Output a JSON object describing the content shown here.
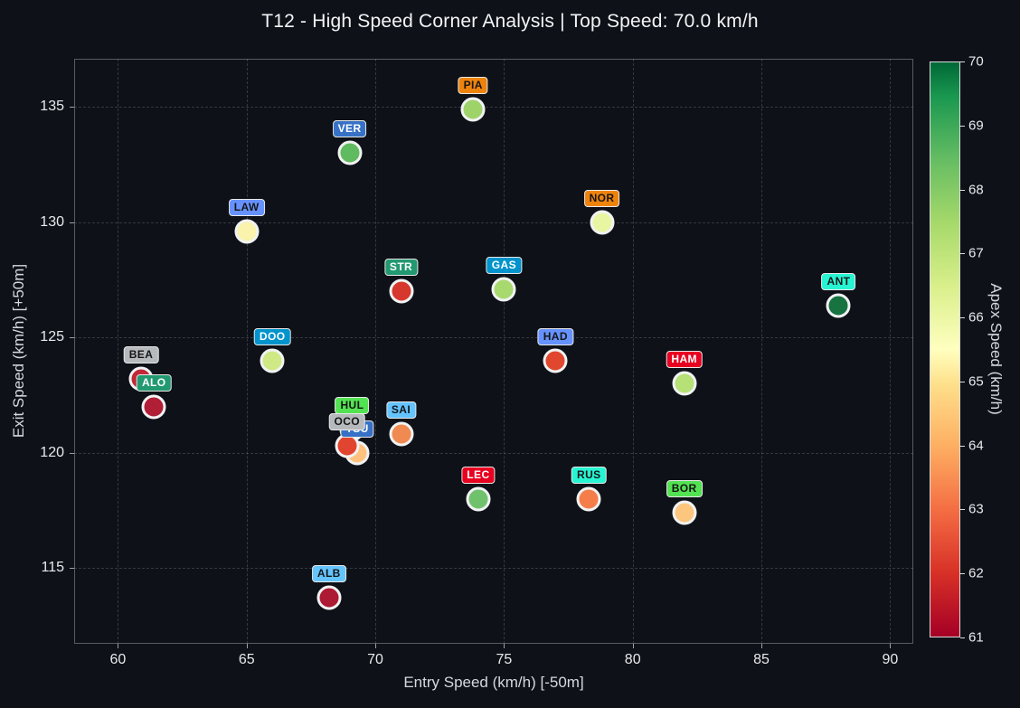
{
  "title": "T12 - High Speed Corner Analysis | Top Speed: 70.0 km/h",
  "colors": {
    "background": "#0e1117",
    "text": "#e8eaed",
    "axis_spine": "#565c66",
    "grid": "#96a0af",
    "point_edge": "#f1f2f3"
  },
  "chart_data": {
    "type": "scatter",
    "title": "T12 - High Speed Corner Analysis | Top Speed: 70.0 km/h",
    "xlabel": "Entry Speed (km/h) [-50m]",
    "ylabel": "Exit Speed (km/h) [+50m]",
    "xlim": [
      58.3,
      90.9
    ],
    "ylim": [
      111.7,
      137.1
    ],
    "xticks": [
      60,
      65,
      70,
      75,
      80,
      85,
      90
    ],
    "yticks": [
      115,
      120,
      125,
      130,
      135
    ],
    "grid": true,
    "colorbar": {
      "label": "Apex Speed (km/h)",
      "min": 61,
      "max": 70,
      "ticks": [
        61,
        62,
        63,
        64,
        65,
        66,
        67,
        68,
        69,
        70
      ],
      "colormap": "RdYlGn",
      "gradient_stops": [
        "#a50026 0%",
        "#d73027 11%",
        "#f46d43 22%",
        "#fdae61 33%",
        "#fee08b 44%",
        "#ffffbf 50%",
        "#d9ef8b 61%",
        "#a6d96a 72%",
        "#66bd63 83%",
        "#1a9850 94%",
        "#006837 100%"
      ]
    },
    "points": [
      {
        "code": "PIA",
        "entry": 73.8,
        "exit": 134.9,
        "apex_est": 67.5,
        "dot_color": "#9ed36a",
        "label_bg": "#ee830c",
        "label_fg": "#151515"
      },
      {
        "code": "VER",
        "entry": 69.0,
        "exit": 133.0,
        "apex_est": 68.3,
        "dot_color": "#60ba5f",
        "label_bg": "#3671c6",
        "label_fg": "#ffffff"
      },
      {
        "code": "NOR",
        "entry": 78.8,
        "exit": 130.0,
        "apex_est": 66.1,
        "dot_color": "#e9f6a1",
        "label_bg": "#ee830c",
        "label_fg": "#151515"
      },
      {
        "code": "LAW",
        "entry": 65.0,
        "exit": 129.6,
        "apex_est": 65.7,
        "dot_color": "#f9f3ab",
        "label_bg": "#6692ff",
        "label_fg": "#151515"
      },
      {
        "code": "GAS",
        "entry": 75.0,
        "exit": 127.1,
        "apex_est": 67.3,
        "dot_color": "#a8d96e",
        "label_bg": "#0093cc",
        "label_fg": "#ffffff"
      },
      {
        "code": "STR",
        "entry": 71.0,
        "exit": 127.0,
        "apex_est": 62.0,
        "dot_color": "#d7382d",
        "label_bg": "#229971",
        "label_fg": "#ffffff"
      },
      {
        "code": "ANT",
        "entry": 88.0,
        "exit": 126.4,
        "apex_est": 69.6,
        "dot_color": "#177340",
        "label_bg": "#27f4d2",
        "label_fg": "#151515"
      },
      {
        "code": "DOO",
        "entry": 66.0,
        "exit": 124.0,
        "apex_est": 66.7,
        "dot_color": "#cfe985",
        "label_bg": "#0093cc",
        "label_fg": "#ffffff"
      },
      {
        "code": "HAD",
        "entry": 77.0,
        "exit": 124.0,
        "apex_est": 62.3,
        "dot_color": "#e1472f",
        "label_bg": "#6692ff",
        "label_fg": "#151515"
      },
      {
        "code": "BEA",
        "entry": 60.9,
        "exit": 123.2,
        "apex_est": 61.6,
        "dot_color": "#c22837",
        "label_bg": "#b6babd",
        "label_fg": "#151515"
      },
      {
        "code": "HAM",
        "entry": 82.0,
        "exit": 123.0,
        "apex_est": 67.0,
        "dot_color": "#b5e176",
        "label_bg": "#e80020",
        "label_fg": "#ffffff"
      },
      {
        "code": "ALO",
        "entry": 61.4,
        "exit": 122.0,
        "apex_est": 61.4,
        "dot_color": "#b01f35",
        "label_bg": "#229971",
        "label_fg": "#ffffff"
      },
      {
        "code": "HUL",
        "entry": 69.1,
        "exit": 121.0,
        "apex_est": null,
        "dot_color": "#fdc37e",
        "label_bg": "#52e252",
        "label_fg": "#151515"
      },
      {
        "code": "TSU",
        "entry": 69.3,
        "exit": 120.0,
        "apex_est": 64.2,
        "dot_color": "#fdc37e",
        "label_bg": "#3671c6",
        "label_fg": "#ffffff"
      },
      {
        "code": "OCO",
        "entry": 68.9,
        "exit": 120.3,
        "apex_est": 62.3,
        "dot_color": "#e2452f",
        "label_bg": "#b6babd",
        "label_fg": "#151515"
      },
      {
        "code": "SAI",
        "entry": 71.0,
        "exit": 120.8,
        "apex_est": 63.4,
        "dot_color": "#f08a50",
        "label_bg": "#64c4ff",
        "label_fg": "#151515"
      },
      {
        "code": "LEC",
        "entry": 74.0,
        "exit": 118.0,
        "apex_est": 68.1,
        "dot_color": "#70c16c",
        "label_bg": "#e80020",
        "label_fg": "#ffffff"
      },
      {
        "code": "RUS",
        "entry": 78.3,
        "exit": 118.0,
        "apex_est": 63.2,
        "dot_color": "#f57d4a",
        "label_bg": "#27f4d2",
        "label_fg": "#151515"
      },
      {
        "code": "BOR",
        "entry": 82.0,
        "exit": 117.4,
        "apex_est": 64.2,
        "dot_color": "#fdc67e",
        "label_bg": "#52e252",
        "label_fg": "#151515"
      },
      {
        "code": "ALB",
        "entry": 68.2,
        "exit": 113.7,
        "apex_est": 61.4,
        "dot_color": "#ad1a33",
        "label_bg": "#64c4ff",
        "label_fg": "#151515"
      }
    ]
  }
}
